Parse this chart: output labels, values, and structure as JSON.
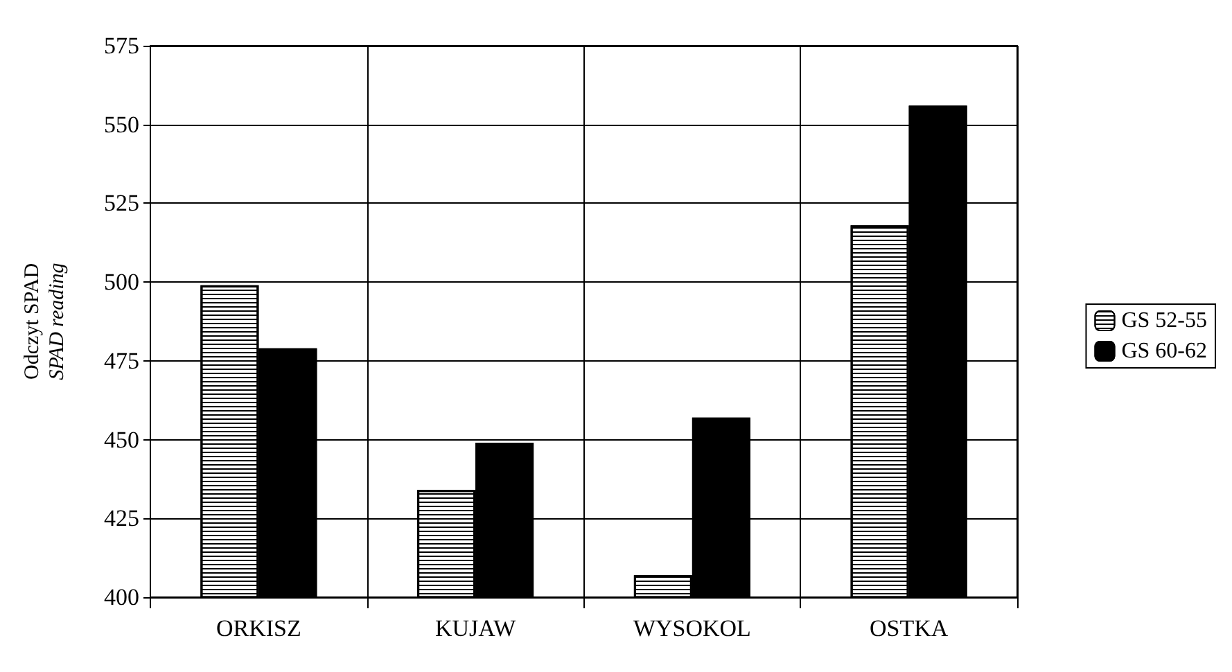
{
  "chart_data": {
    "type": "bar",
    "ylabel": "Odczyt SPAD\nSPAD reading",
    "categories": [
      "ORKISZ",
      "KUJAW",
      "WYSOKOL",
      "OSTKA"
    ],
    "series": [
      {
        "name": "GS 52-55",
        "color": "#ffffff",
        "values": [
          499,
          434,
          407,
          518
        ]
      },
      {
        "name": "GS 60-62",
        "color": "#000000",
        "values": [
          479,
          449,
          457,
          556
        ]
      }
    ],
    "ylim": [
      400,
      575
    ],
    "yticks": [
      400,
      425,
      450,
      475,
      500,
      525,
      550,
      575
    ],
    "grid": true,
    "legend": "right"
  }
}
